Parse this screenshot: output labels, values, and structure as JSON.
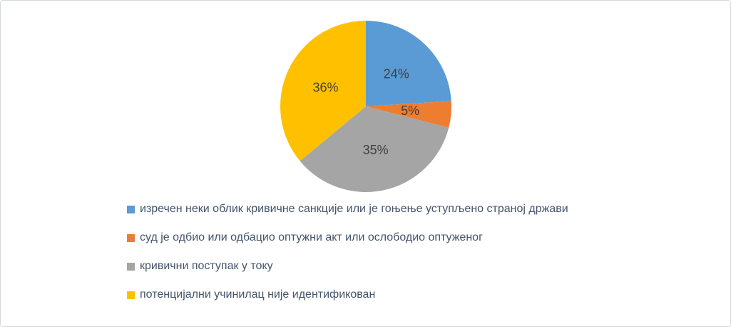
{
  "chart_data": {
    "type": "pie",
    "title": "",
    "start_angle_deg": 0,
    "direction": "clockwise",
    "legend_position": "bottom-left",
    "data_label_color": "#404040",
    "legend_text_color": "#44546A",
    "background_color": "#ffffff",
    "frame_border_color": "#d5d9db",
    "slices": [
      {
        "label": "изречен неки облик кривичне санкције или је гоњење уступљено страној држави",
        "value": 24,
        "display": "24%",
        "color": "#5B9BD5"
      },
      {
        "label": "суд је одбио или одбацио оптужни акт или ослободио оптуженог",
        "value": 5,
        "display": "5%",
        "color": "#ED7D31"
      },
      {
        "label": "кривични поступак у току",
        "value": 35,
        "display": "35%",
        "color": "#A5A5A5"
      },
      {
        "label": "потенцијални учинилац није идентификован",
        "value": 36,
        "display": "36%",
        "color": "#FFC000"
      }
    ]
  }
}
